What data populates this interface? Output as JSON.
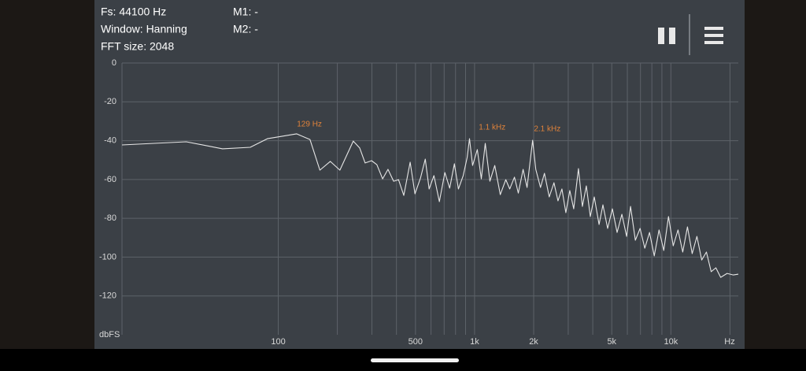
{
  "status": {
    "fs": "Fs: 44100 Hz",
    "window": "Window: Hanning",
    "fft_size": "FFT size: 2048",
    "m1": "M1: -",
    "m2": "M2: -"
  },
  "chart_data": {
    "type": "line",
    "x_label": "Hz",
    "y_label": "dbFS",
    "xscale": "log",
    "xlim": [
      16,
      22050
    ],
    "ylim": [
      -140,
      0
    ],
    "xticks": [
      100,
      500,
      {
        "value": 1000,
        "label": "1k"
      },
      {
        "value": 2000,
        "label": "2k"
      },
      {
        "value": 5000,
        "label": "5k"
      },
      {
        "value": 10000,
        "label": "10k"
      }
    ],
    "x_grid": [
      100,
      200,
      300,
      400,
      500,
      600,
      700,
      800,
      900,
      1000,
      2000,
      3000,
      4000,
      5000,
      6000,
      7000,
      8000,
      9000,
      10000,
      20000
    ],
    "yticks": [
      0,
      -20,
      -40,
      -60,
      -80,
      -100,
      -120
    ],
    "grid": true,
    "series": [
      {
        "color": "#e6e6e6",
        "x": [
          16,
          34,
          52,
          72,
          88,
          124,
          145,
          163,
          184,
          206,
          241,
          260,
          277,
          299,
          318,
          340,
          362,
          387,
          410,
          436,
          470,
          497,
          530,
          561,
          587,
          621,
          662,
          706,
          747,
          789,
          827,
          875,
          917,
          942,
          977,
          1033,
          1082,
          1133,
          1197,
          1267,
          1352,
          1442,
          1511,
          1596,
          1671,
          1767,
          1850,
          1976,
          2051,
          2168,
          2270,
          2400,
          2537,
          2661,
          2786,
          2917,
          3055,
          3199,
          3381,
          3541,
          3707,
          3887,
          4070,
          4305,
          4508,
          4764,
          5035,
          5322,
          5627,
          5952,
          6232,
          6589,
          6966,
          7364,
          7784,
          8229,
          8700,
          9197,
          9723,
          10280,
          10867,
          11488,
          12145,
          12840,
          13574,
          14350,
          15170,
          16037,
          16954,
          17923,
          19320,
          20800,
          22050
        ],
        "values": [
          -42.2,
          -40.6,
          -44.2,
          -43.4,
          -39,
          -36.5,
          -39.4,
          -55.2,
          -50.7,
          -55.2,
          -40.2,
          -43.8,
          -51.5,
          -50.3,
          -52.4,
          -59.7,
          -54.8,
          -60.9,
          -60.1,
          -68.2,
          -51.1,
          -67.4,
          -59.3,
          -49.5,
          -64.9,
          -58,
          -71.4,
          -56.4,
          -64.5,
          -51.9,
          -64.9,
          -58,
          -48.7,
          -39,
          -52.8,
          -44.6,
          -59.7,
          -41.4,
          -60.9,
          -52.8,
          -67.8,
          -60.1,
          -64.9,
          -58.8,
          -67,
          -54.8,
          -64.1,
          -39.8,
          -54.8,
          -64.1,
          -56.8,
          -69,
          -61.7,
          -71,
          -64.9,
          -77.1,
          -65.7,
          -75.1,
          -54.4,
          -73.9,
          -63.3,
          -79.1,
          -69,
          -83.2,
          -73.1,
          -85.2,
          -75.1,
          -87.3,
          -77.9,
          -89.3,
          -73.9,
          -91.3,
          -85.2,
          -95.4,
          -87.3,
          -99.4,
          -86,
          -96.6,
          -79.1,
          -94.2,
          -86,
          -97.4,
          -84.4,
          -98.2,
          -89.3,
          -101.5,
          -97.4,
          -107.5,
          -105.5,
          -110.4,
          -108.4,
          -109.2,
          -108.8
        ]
      }
    ],
    "annotations": [
      {
        "text": "129 Hz",
        "x": 129,
        "y": -36.5
      },
      {
        "text": "1.1  kHz",
        "x": 1100,
        "y": -38
      },
      {
        "text": "2.1  kHz",
        "x": 2100,
        "y": -39
      }
    ],
    "annotation_color": "#e0823a"
  }
}
